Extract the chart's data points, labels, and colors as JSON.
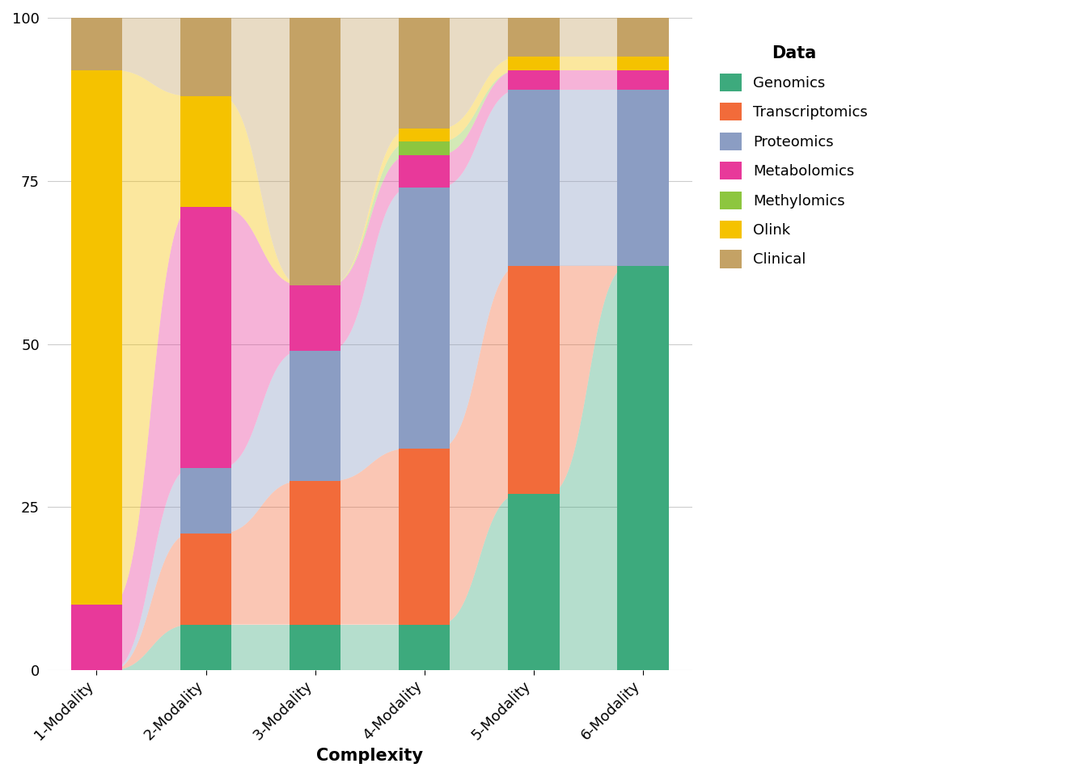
{
  "categories": [
    "1-Modality",
    "2-Modality",
    "3-Modality",
    "4-Modality",
    "5-Modality",
    "6-Modality"
  ],
  "modalities": [
    "Genomics",
    "Transcriptomics",
    "Proteomics",
    "Metabolomics",
    "Methylomics",
    "Olink",
    "Clinical"
  ],
  "colors": {
    "Genomics": "#3DAA7D",
    "Transcriptomics": "#F26B3A",
    "Proteomics": "#8B9DC3",
    "Metabolomics": "#E8399A",
    "Methylomics": "#8DC63F",
    "Olink": "#F5C200",
    "Clinical": "#C4A265"
  },
  "bar_data": {
    "1-Modality": {
      "Genomics": 0,
      "Transcriptomics": 0,
      "Proteomics": 0,
      "Metabolomics": 10,
      "Methylomics": 0,
      "Olink": 82,
      "Clinical": 8
    },
    "2-Modality": {
      "Genomics": 7,
      "Transcriptomics": 14,
      "Proteomics": 10,
      "Metabolomics": 40,
      "Methylomics": 0,
      "Olink": 17,
      "Clinical": 12
    },
    "3-Modality": {
      "Genomics": 7,
      "Transcriptomics": 22,
      "Proteomics": 20,
      "Metabolomics": 10,
      "Methylomics": 0,
      "Olink": 0,
      "Clinical": 41
    },
    "4-Modality": {
      "Genomics": 7,
      "Transcriptomics": 27,
      "Proteomics": 40,
      "Metabolomics": 5,
      "Methylomics": 2,
      "Olink": 2,
      "Clinical": 17
    },
    "5-Modality": {
      "Genomics": 27,
      "Transcriptomics": 35,
      "Proteomics": 27,
      "Metabolomics": 3,
      "Methylomics": 0,
      "Olink": 2,
      "Clinical": 6
    },
    "6-Modality": {
      "Genomics": 62,
      "Transcriptomics": 0,
      "Proteomics": 27,
      "Metabolomics": 3,
      "Methylomics": 0,
      "Olink": 2,
      "Clinical": 6
    }
  },
  "background_color": "#FFFFFF",
  "xlabel": "Complexity",
  "ylabel": "",
  "ylim": [
    0,
    100
  ],
  "bar_width": 0.055,
  "alpha_flow": 0.38
}
